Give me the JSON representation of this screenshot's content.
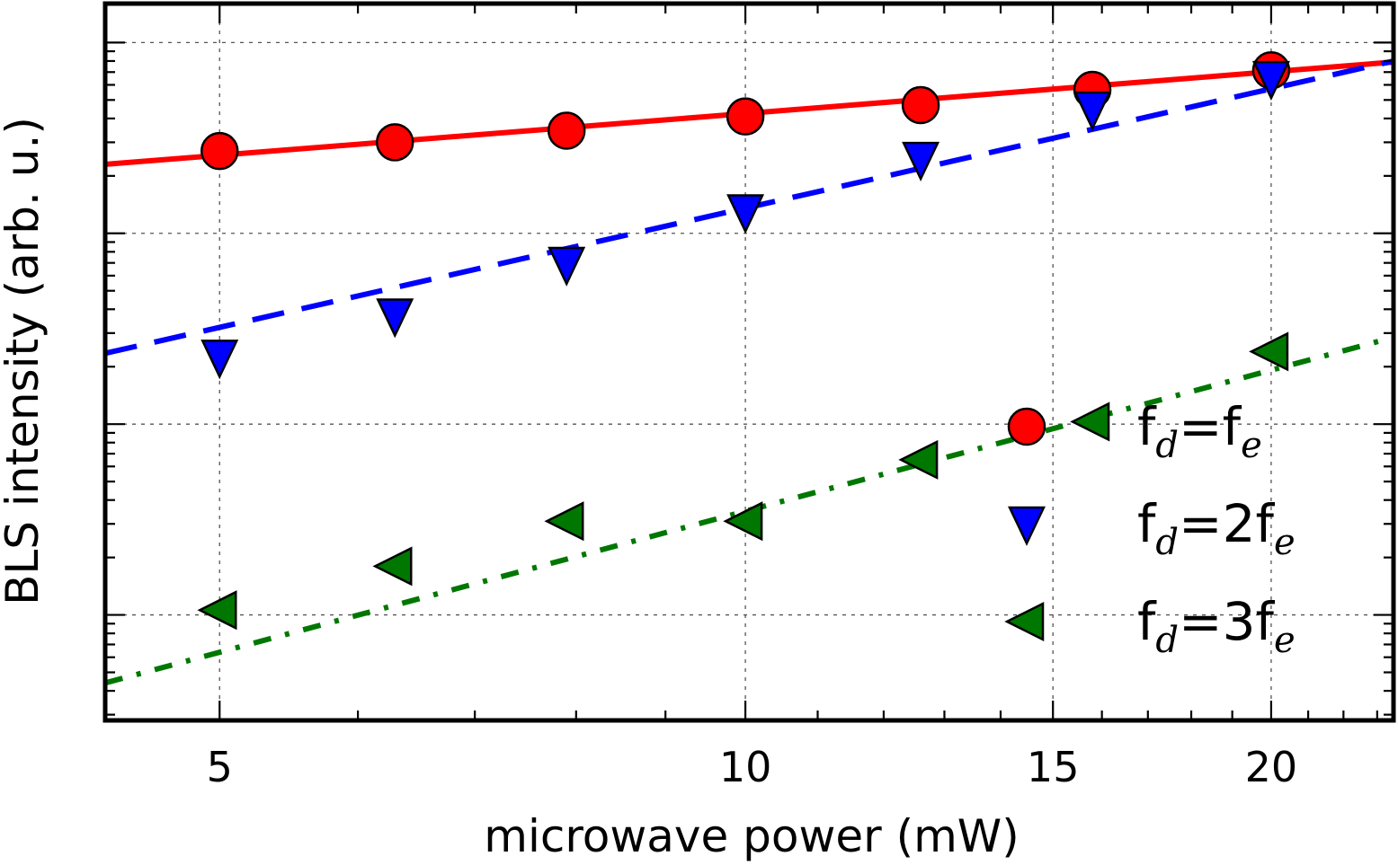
{
  "chart_data": {
    "type": "scatter",
    "title": "",
    "xlabel": "microwave power (mW)",
    "ylabel": "BLS intensity (arb. u.)",
    "x_scale": "log",
    "y_scale": "log",
    "xlim": [
      4.3,
      23.5
    ],
    "x_ticks": [
      5,
      10,
      15,
      20
    ],
    "ylim": [
      0.00028,
      1.6
    ],
    "y_decades": [
      0.001,
      0.01,
      0.1,
      1
    ],
    "y_tick_labels": "none",
    "grid": true,
    "legend": "lower-right",
    "series": [
      {
        "name": "f_d = f_e",
        "legend_parts": {
          "main": "f",
          "sub": "d",
          "rel": "=",
          "coef": "",
          "main2": "f",
          "sub2": "e"
        },
        "marker": "circle",
        "color": "#ff0000",
        "x": [
          5,
          6.3,
          7.9,
          10,
          12.6,
          15.8,
          20
        ],
        "y": [
          0.27,
          0.3,
          0.345,
          0.41,
          0.47,
          0.565,
          0.715
        ],
        "fit": {
          "style": "solid",
          "color": "#ff0000",
          "points": [
            [
              4.3,
              0.23
            ],
            [
              23.5,
              0.79
            ]
          ]
        }
      },
      {
        "name": "f_d = 2f_e",
        "legend_parts": {
          "main": "f",
          "sub": "d",
          "rel": "=",
          "coef": "2",
          "main2": "f",
          "sub2": "e"
        },
        "marker": "triangle-down",
        "color": "#0000ff",
        "x": [
          5,
          6.3,
          7.9,
          10,
          12.6,
          15.8,
          20
        ],
        "y": [
          0.0225,
          0.037,
          0.069,
          0.13,
          0.245,
          0.45,
          0.65
        ],
        "fit": {
          "style": "dashed",
          "color": "#0000ff",
          "points": [
            [
              4.3,
              0.0235
            ],
            [
              23.5,
              0.8
            ]
          ]
        }
      },
      {
        "name": "f_d = 3f_e",
        "legend_parts": {
          "main": "f",
          "sub": "d",
          "rel": "=",
          "coef": "3",
          "main2": "f",
          "sub2": "e"
        },
        "marker": "triangle-left",
        "color": "#007700",
        "x": [
          5,
          6.3,
          7.9,
          10,
          12.6,
          15.8,
          20
        ],
        "y": [
          0.00106,
          0.0018,
          0.0031,
          0.0031,
          0.0065,
          0.0103,
          0.024
        ],
        "fit": {
          "style": "dashdot",
          "color": "#007700",
          "points": [
            [
              4.3,
              0.00044
            ],
            [
              23.5,
              0.0285
            ]
          ]
        }
      }
    ]
  }
}
